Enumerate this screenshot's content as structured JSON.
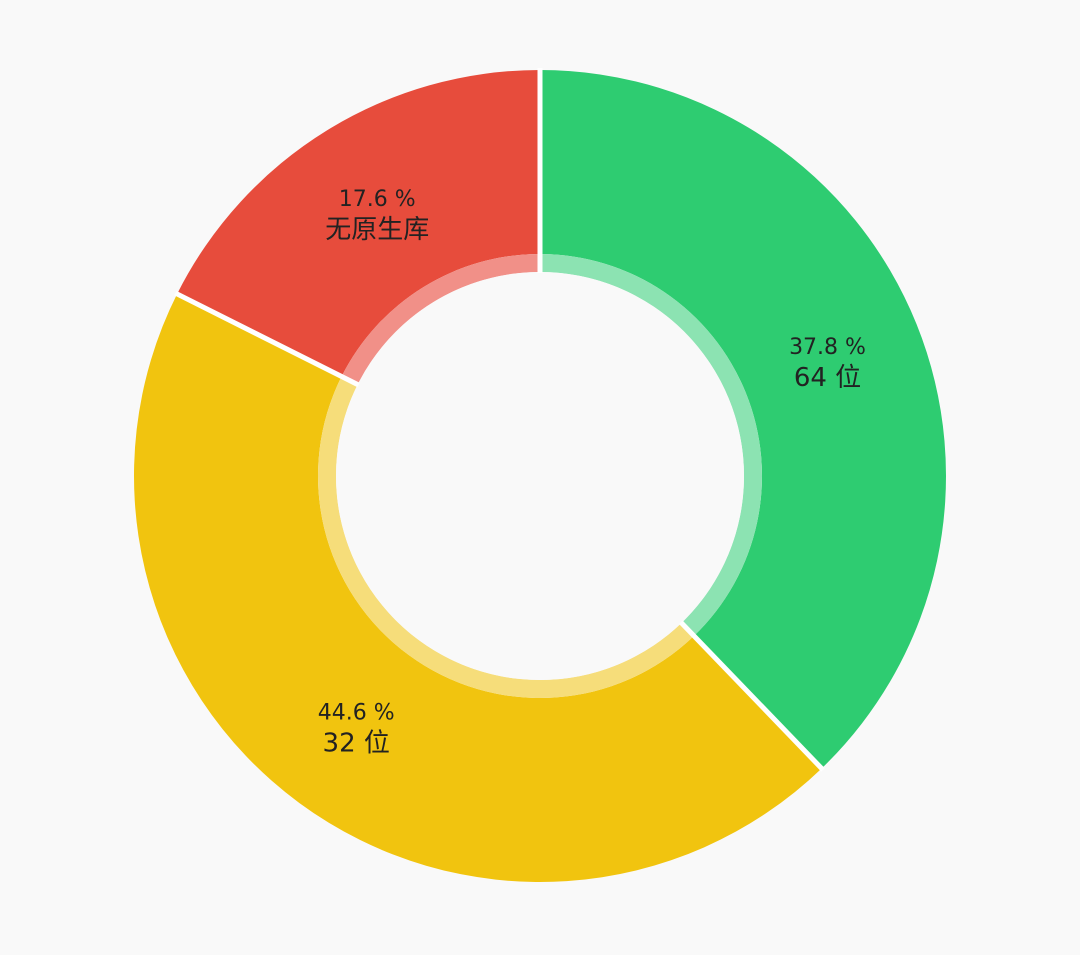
{
  "chart_data": {
    "type": "pie",
    "title": "",
    "donut": true,
    "slices": [
      {
        "percent_label": "37.8 %",
        "desc_label": "64 位",
        "value": 37.8,
        "color": "#2ecc71",
        "inner_color": "#8ce3b2"
      },
      {
        "percent_label": "44.6 %",
        "desc_label": "32 位",
        "value": 44.6,
        "color": "#f1c40f",
        "inner_color": "#f6dd7a"
      },
      {
        "percent_label": "17.6 %",
        "desc_label": "无原生库",
        "value": 17.6,
        "color": "#e74c3c",
        "inner_color": "#f19088"
      }
    ],
    "start_angle_deg": 0,
    "direction": "clockwise",
    "background": "#f9f9f9",
    "separator_color": "#ffffff"
  }
}
